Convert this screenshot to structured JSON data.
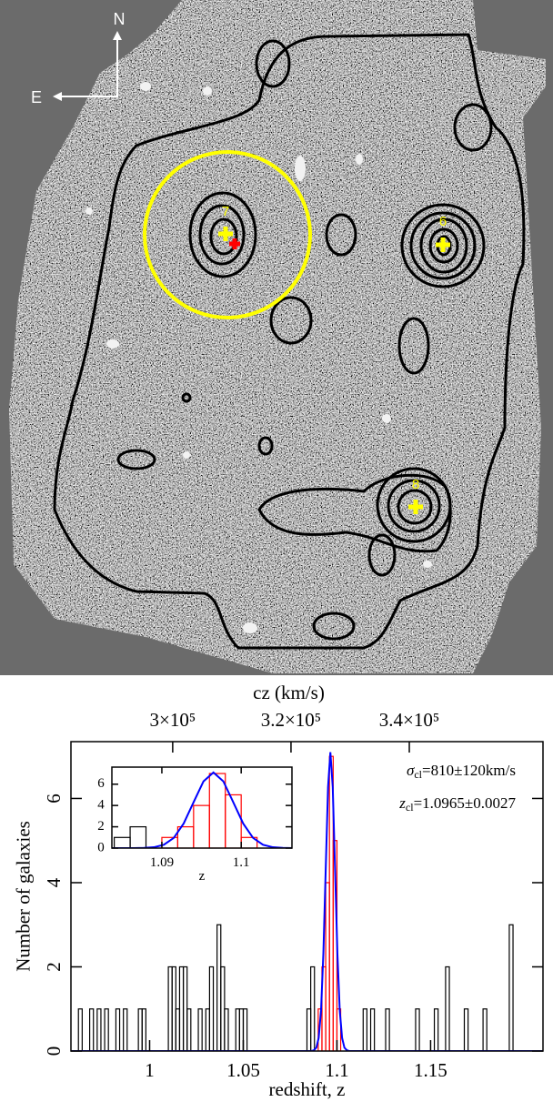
{
  "image": {
    "compass": {
      "north": "N",
      "east": "E"
    },
    "cluster_labels": [
      "7",
      "6",
      "8"
    ]
  },
  "chart_data": [
    {
      "type": "histogram",
      "x_label": "redshift, z",
      "y_label": "Number of galaxies",
      "x2_label": "cz (km/s)",
      "xlim": [
        0.958,
        1.21
      ],
      "ylim": [
        0,
        7.35
      ],
      "x2lim": [
        282800,
        362600
      ],
      "xticks": [
        1,
        1.05,
        1.1,
        1.15
      ],
      "yticks": [
        0,
        2,
        4,
        6
      ],
      "x2ticks": [
        {
          "value": 300000,
          "label": "3×10⁵"
        },
        {
          "value": 320000,
          "label": "3.2×10⁵"
        },
        {
          "value": 340000,
          "label": "3.4×10⁵"
        }
      ],
      "bin_width": 0.002,
      "series": [
        {
          "color": "#000000",
          "x": [
            0.962,
            0.968,
            0.972,
            0.976,
            0.982,
            0.986,
            0.994,
            0.996,
            1.01,
            1.012,
            1.014,
            1.016,
            1.018,
            1.02,
            1.026,
            1.03,
            1.032,
            1.036,
            1.038,
            1.04,
            1.046,
            1.048,
            1.05,
            1.084,
            1.086,
            1.114,
            1.118,
            1.126,
            1.142,
            1.152,
            1.158,
            1.168,
            1.178,
            1.192
          ],
          "values": [
            1,
            1,
            1,
            1,
            1,
            1,
            1,
            1,
            2,
            2,
            1,
            2,
            2,
            1,
            1,
            1,
            2,
            3,
            2,
            1,
            1,
            1,
            1,
            1,
            2,
            1,
            1,
            1,
            1,
            1,
            2,
            1,
            1,
            3
          ]
        },
        {
          "color": "#ff0000",
          "x": [
            1.09,
            1.092,
            1.094,
            1.096,
            1.098,
            1.1
          ],
          "values": [
            1,
            2,
            4,
            7,
            5,
            1
          ]
        }
      ],
      "curve": {
        "color": "#0000ff",
        "x": [
          0.958,
          1.0865,
          1.08775,
          1.089,
          1.09025,
          1.0915,
          1.09275,
          1.094,
          1.09525,
          1.0965,
          1.09775,
          1.099,
          1.10025,
          1.1015,
          1.10275,
          1.104,
          1.10525,
          1.1065,
          1.21
        ],
        "values": [
          0,
          0,
          0.02,
          0.08,
          0.31,
          0.96,
          2.31,
          4.31,
          6.27,
          7.1,
          6.27,
          4.31,
          2.31,
          0.96,
          0.31,
          0.08,
          0.02,
          0,
          0
        ]
      },
      "annotations": [
        {
          "symbol": "σ",
          "subscript": "cl",
          "text": "=810±120km/s"
        },
        {
          "symbol": "z",
          "subscript": "cl",
          "text": "=1.0965±0.0027"
        }
      ]
    },
    {
      "type": "histogram",
      "x_label": "z",
      "xlim": [
        1.0837,
        1.1064
      ],
      "ylim": [
        0,
        7.6
      ],
      "xticks": [
        1.09,
        1.1
      ],
      "yticks": [
        0,
        2,
        4,
        6
      ],
      "bin_width": 0.002,
      "series": [
        {
          "color": "#000000",
          "x": [
            1.084,
            1.086
          ],
          "values": [
            1,
            2
          ]
        },
        {
          "color": "#ff0000",
          "x": [
            1.09,
            1.092,
            1.094,
            1.096,
            1.098,
            1.1
          ],
          "values": [
            1,
            2,
            4,
            7,
            5,
            1
          ]
        }
      ],
      "curve": {
        "color": "#0000ff",
        "x": [
          1.0837,
          1.0865,
          1.08775,
          1.089,
          1.09025,
          1.0915,
          1.09275,
          1.094,
          1.09525,
          1.0965,
          1.09775,
          1.099,
          1.10025,
          1.1015,
          1.10275,
          1.104,
          1.10525,
          1.1065
        ],
        "values": [
          0,
          0,
          0.02,
          0.08,
          0.31,
          0.96,
          2.31,
          4.31,
          6.27,
          7.1,
          6.27,
          4.31,
          2.31,
          0.96,
          0.31,
          0.08,
          0.02,
          0
        ]
      }
    }
  ]
}
